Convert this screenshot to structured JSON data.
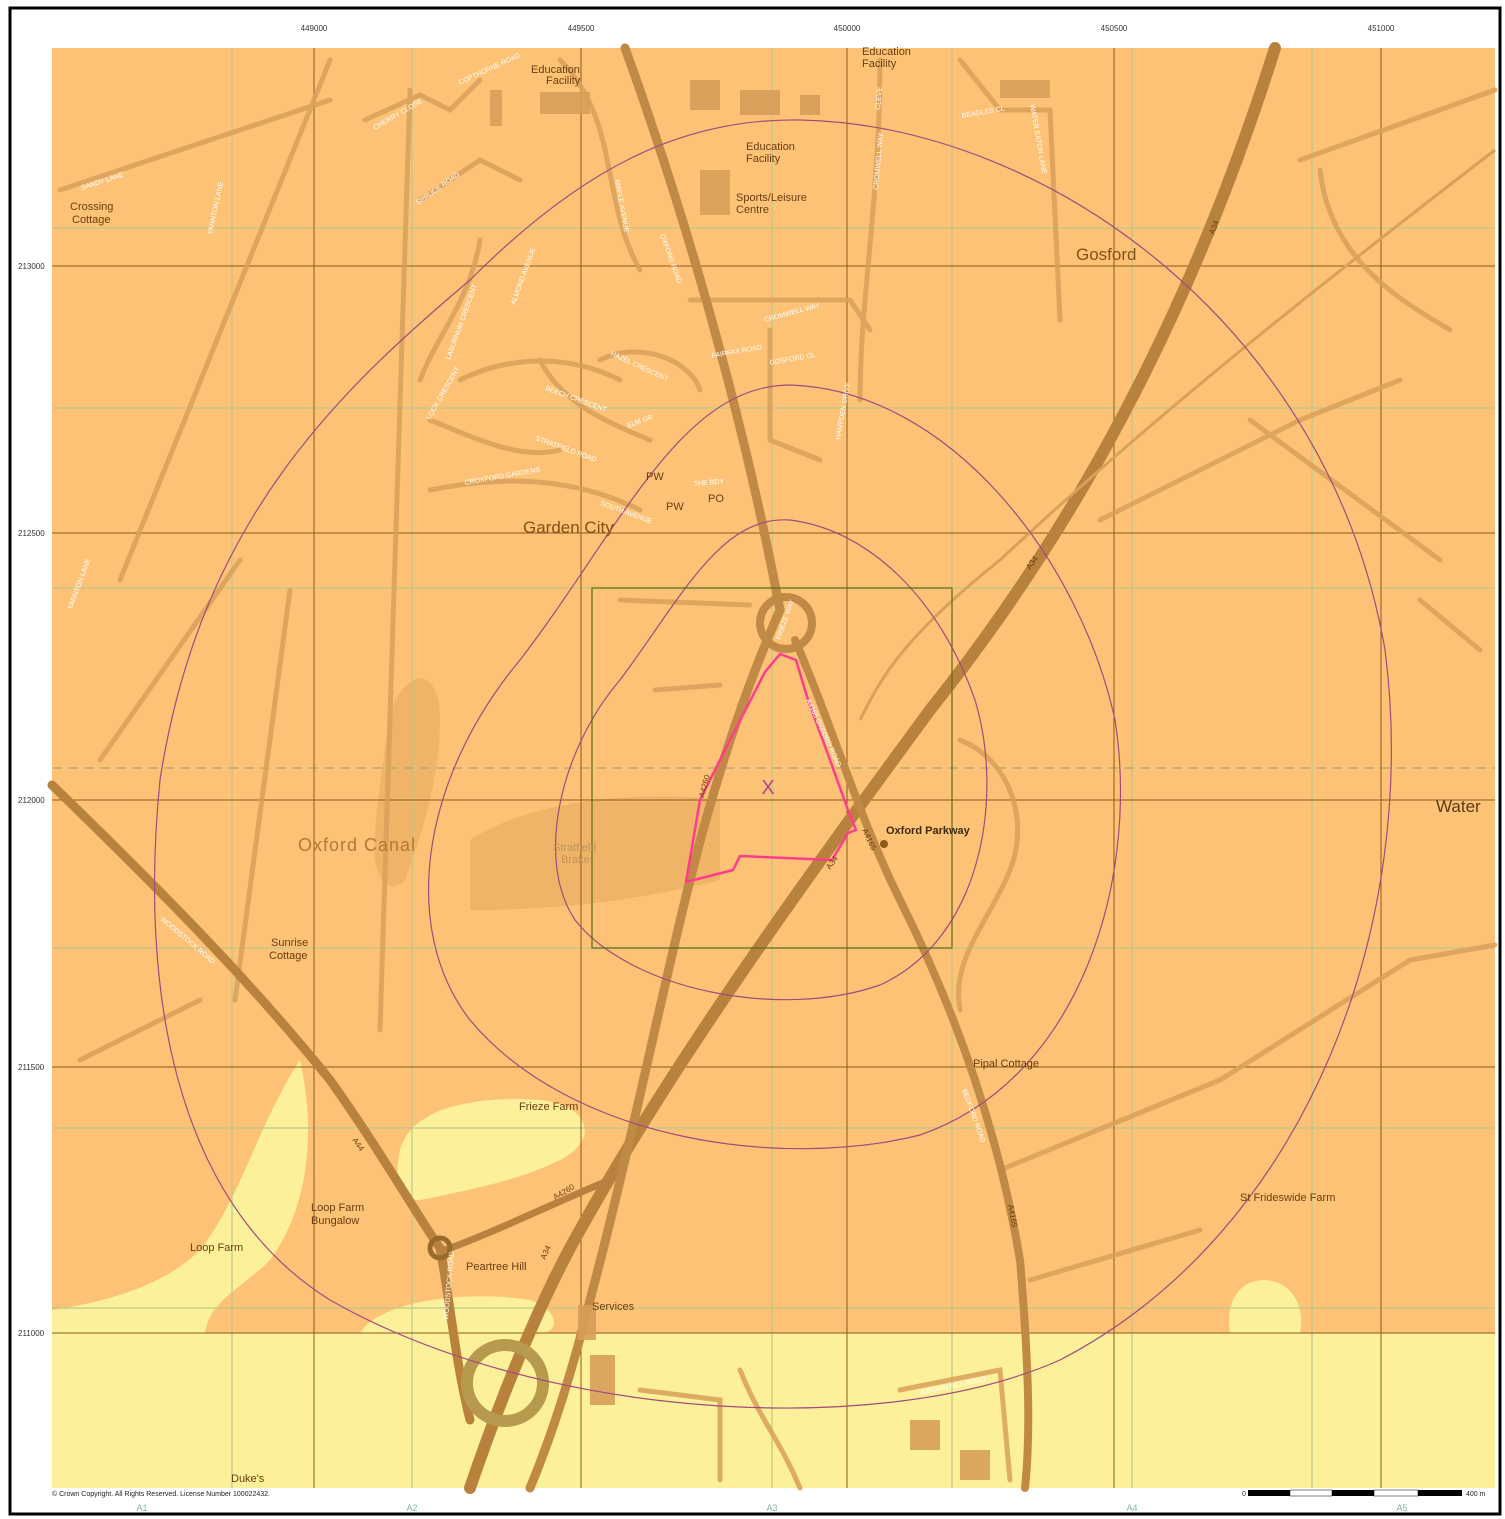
{
  "map": {
    "colors": {
      "orange_zone": "#fdc275",
      "yellow_zone": "#fdf09a",
      "grid_major": "#8a5a1a",
      "grid_minor": "#b8c98b",
      "buffer_ring": "#a54a7a",
      "site_boundary": "#ff3d8b",
      "road": "#c49250"
    },
    "eastings": [
      "449000",
      "449500",
      "450000",
      "450500",
      "451000"
    ],
    "northings": [
      "213000",
      "212500",
      "212000",
      "211500",
      "211000"
    ],
    "columns": [
      "A1",
      "A2",
      "A3",
      "A4",
      "A5"
    ],
    "site_marker": "X",
    "places": {
      "gosford": "Gosford",
      "garden_city": "Garden City",
      "oxford_canal": "Oxford Canal",
      "water": "Water",
      "crossing_cottage_1": "Crossing",
      "crossing_cottage_2": "Cottage",
      "education_facility_a1": "Education",
      "education_facility_a2": "Facility",
      "education_facility_b1": "Education",
      "education_facility_b2": "Facility",
      "education_facility_c1": "Education",
      "education_facility_c2": "Facility",
      "sports_centre_1": "Sports/Leisure",
      "sports_centre_2": "Centre",
      "stratfield_brake_1": "Stratfield",
      "stratfield_brake_2": "Brake",
      "oxford_parkway": "Oxford Parkway",
      "sunrise_cottage_1": "Sunrise",
      "sunrise_cottage_2": "Cottage",
      "pipal_cottage": "Pipal Cottage",
      "frieze_farm": "Frieze Farm",
      "loop_farm_bungalow_1": "Loop Farm",
      "loop_farm_bungalow_2": "Bungalow",
      "loop_farm": "Loop Farm",
      "peartree_hill": "Peartree Hill",
      "services": "Services",
      "st_frideswide": "St Frideswide Farm",
      "dukes": "Duke's",
      "pw1": "PW",
      "pw2": "PW",
      "po": "PO"
    },
    "streets": {
      "sandy_lane": "SANDY LANE",
      "yarnton_lane": "YARNTON LANE",
      "yarnton_lane2": "YARNTON LANE",
      "cherry_close": "CHERRY CLOSE",
      "copthorne": "COPTHORNE ROAD",
      "spruce_road": "SPRUCE ROAD",
      "almond_avenue": "ALMOND AVENUE",
      "laburnum_crescent": "LABURNUM CRESCENT",
      "hazel_crescent": "HAZEL CRESCENT",
      "beech_crescent": "BEECH CRESCENT",
      "elm_gr": "ELM GR",
      "stratfield_road": "STRATFIELD ROAD",
      "crosford_gardens": "CROXFORD GARDENS",
      "south_avenue": "SOUTH AVENUE",
      "the_bdy": "THE BDY",
      "lock_crescent": "LOCK CRESCENT",
      "oxford_road": "OXFORD ROAD",
      "maple_avenue": "MAPLE AVENUE",
      "cromwell_way": "CROMWELL WAY",
      "cromwell_way2": "CROMWELL WAY",
      "fairfax_road": "FAIRFAX ROAD",
      "gosford_cl": "GOSFORD CL",
      "hampden_drive": "HAMPDEN DRIVE",
      "beagles_cl": "BEAGLES CL",
      "water_eaton_lane": "WATER EATON LANE",
      "cleve": "CLEVE",
      "frieze_way": "FRIEZE WAY",
      "woodstock_road": "WOODSTOCK ROAD",
      "woodstock_road2": "WOODSTOCK ROAD",
      "bedford_road": "BEDFORD ROAD",
      "jordan_hill_road": "JORDAN HILL ROAD",
      "a4165_oxford_road": "A4165 OXFORD ROAD"
    },
    "road_numbers": {
      "a34_n": "A34",
      "a34_mid": "A34",
      "a34_s": "A34",
      "a34_ne": "A34",
      "a4260_n": "A4260",
      "a4260_s": "A4260",
      "a4165_a": "A4165",
      "a4165_b": "A4165",
      "a44": "A44"
    },
    "copyright": "© Crown Copyright. All Rights Reserved. License Number 100022432.",
    "scale": {
      "start": "0",
      "end": "400 m"
    }
  }
}
